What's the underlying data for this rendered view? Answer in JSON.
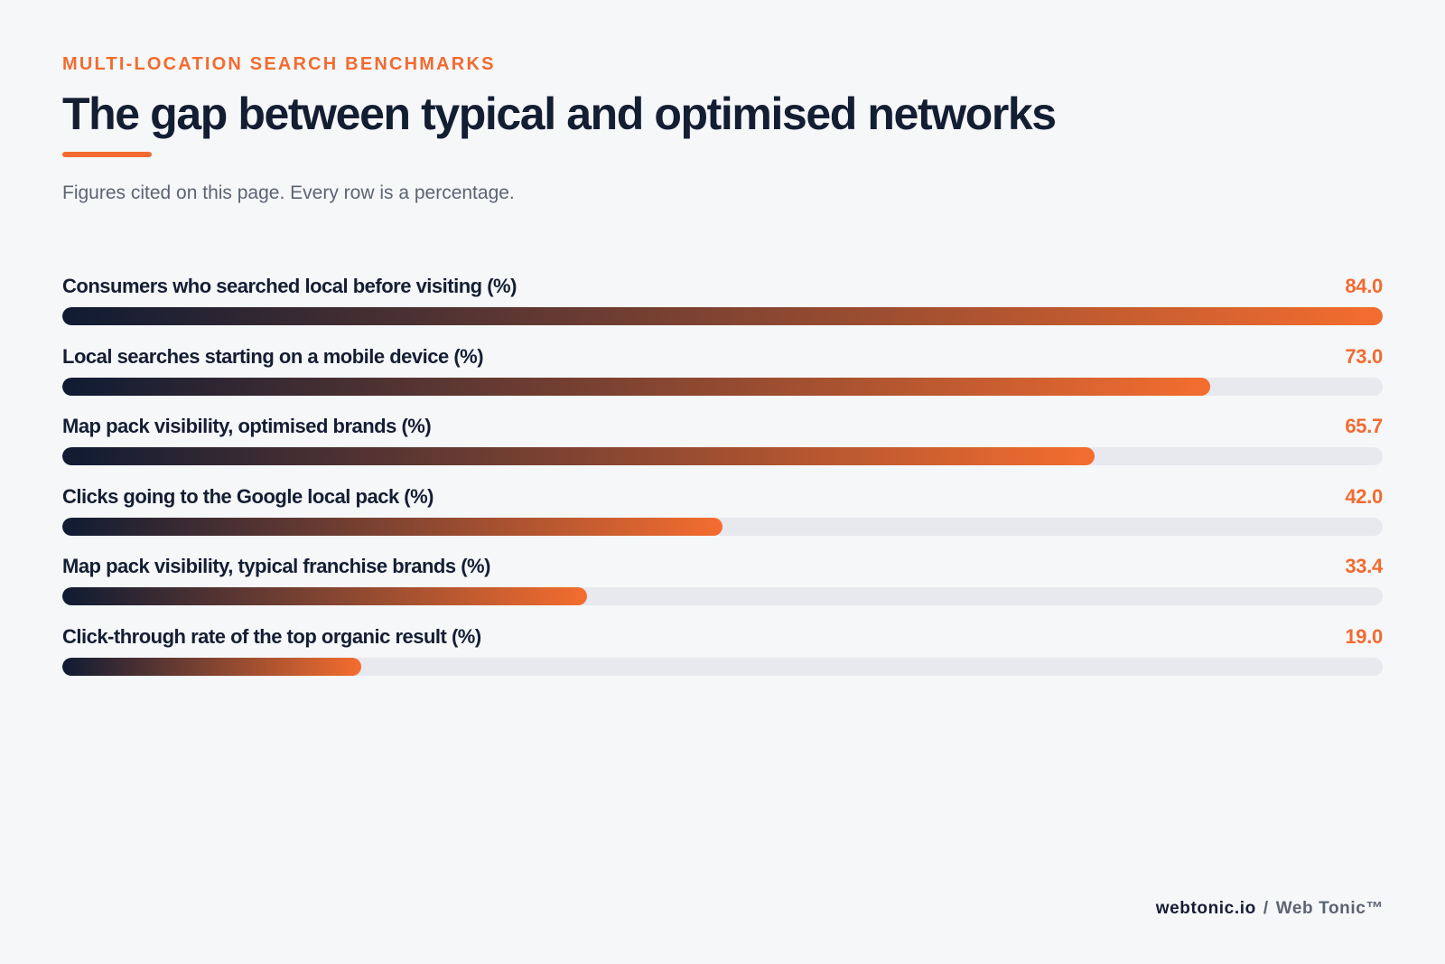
{
  "header": {
    "kicker": "MULTI-LOCATION SEARCH BENCHMARKS",
    "title": "The gap between typical and optimised networks",
    "subtitle": "Figures cited on this page. Every row is a percentage."
  },
  "colors": {
    "accent": "#f26b30",
    "ink": "#141e33",
    "track": "#e7e9ee",
    "gradient_start": "#0f1b33",
    "gradient_end": "#f46d2f"
  },
  "chart_data": {
    "type": "bar",
    "orientation": "horizontal",
    "xlim": [
      0,
      84.0
    ],
    "grid": false,
    "categories": [
      "Consumers who searched local before visiting (%)",
      "Local searches starting on a mobile device (%)",
      "Map pack visibility, optimised brands (%)",
      "Clicks going to the Google local pack (%)",
      "Map pack visibility, typical franchise brands (%)",
      "Click-through rate of the top organic result (%)"
    ],
    "values": [
      84.0,
      73.0,
      65.7,
      42.0,
      33.4,
      19.0
    ],
    "value_labels": [
      "84.0",
      "73.0",
      "65.7",
      "42.0",
      "33.4",
      "19.0"
    ]
  },
  "footer": {
    "domain": "webtonic.io",
    "separator": "/",
    "brand": "Web Tonic™"
  }
}
